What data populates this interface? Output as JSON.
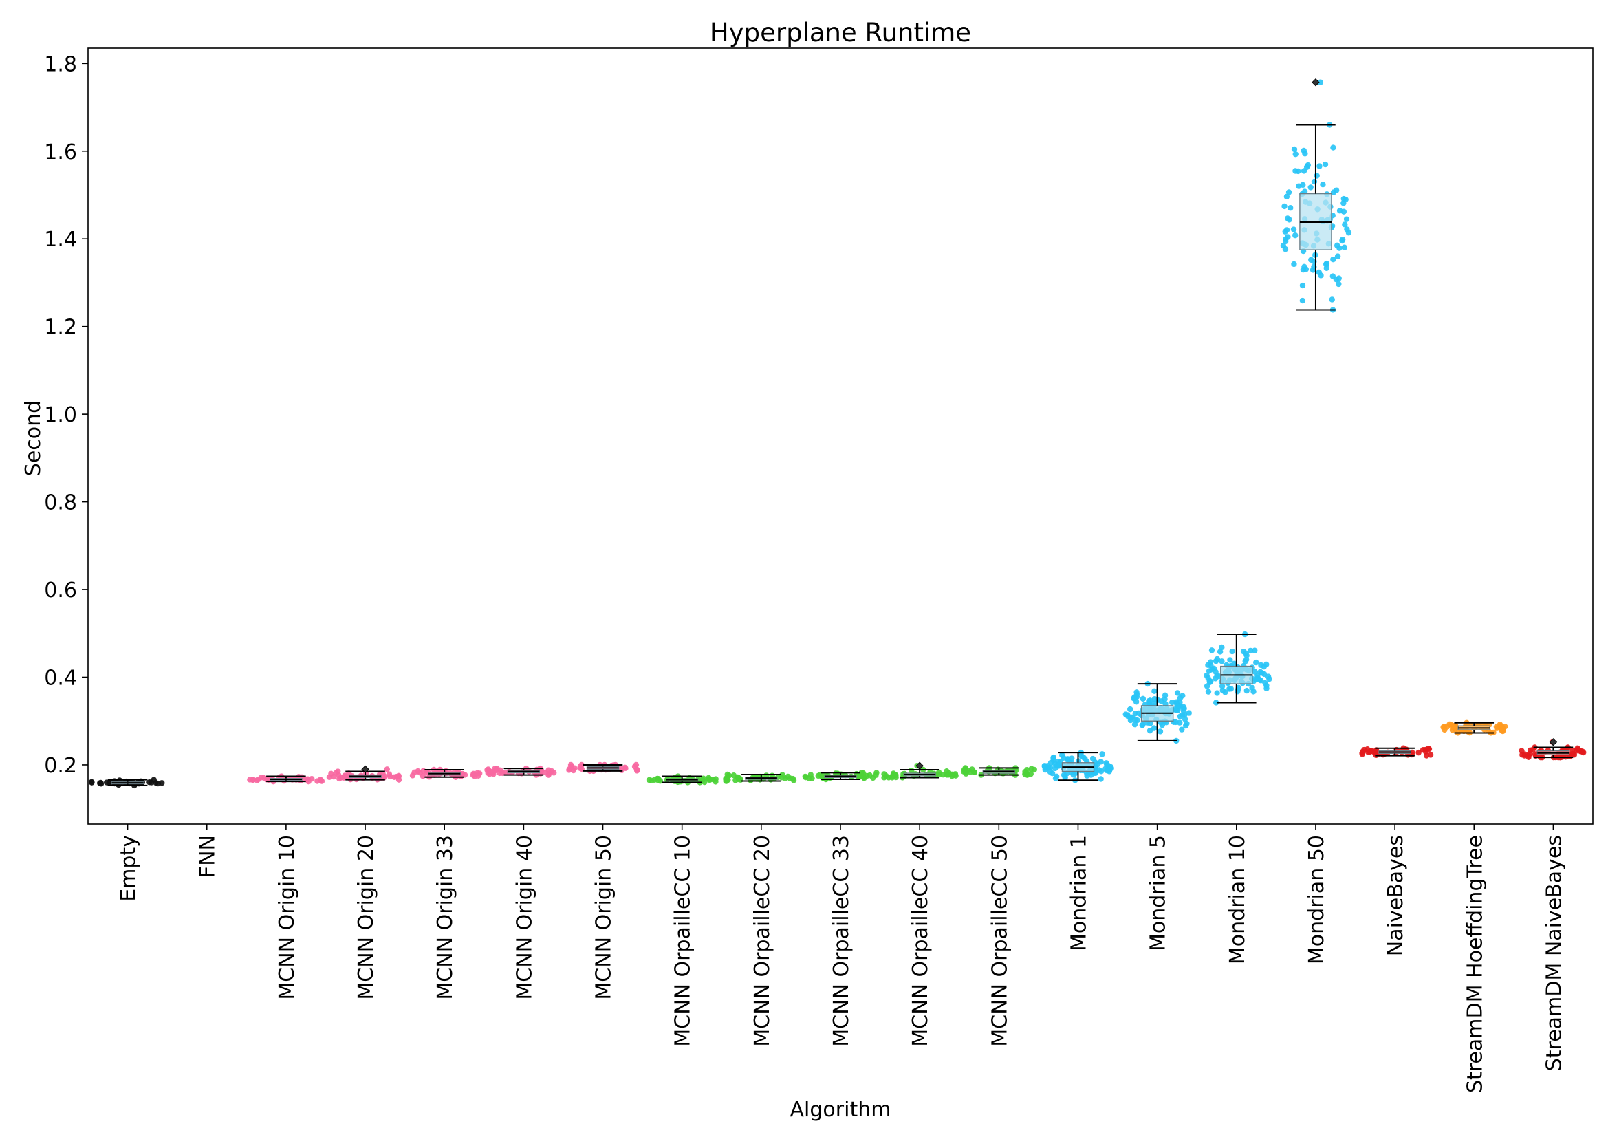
{
  "chart_data": {
    "type": "box",
    "title": "Hyperplane Runtime",
    "xlabel": "Algorithm",
    "ylabel": "Second",
    "ylim": [
      0.065,
      1.835
    ],
    "yticks": [
      0.2,
      0.4,
      0.6,
      0.8,
      1.0,
      1.2,
      1.4,
      1.6,
      1.8
    ],
    "grid": false,
    "legend": "none",
    "overlay": "swarm",
    "categories": [
      "Empty",
      "FNN",
      "MCNN Origin 10",
      "MCNN Origin 20",
      "MCNN Origin 33",
      "MCNN Origin 40",
      "MCNN Origin 50",
      "MCNN OrpailleCC 10",
      "MCNN OrpailleCC 20",
      "MCNN OrpailleCC 33",
      "MCNN OrpailleCC 40",
      "MCNN OrpailleCC 50",
      "Mondrian 1",
      "Mondrian 5",
      "Mondrian 10",
      "Mondrian 50",
      "NaiveBayes",
      "StreamDM HoeffdingTree",
      "StreamDM NaiveBayes"
    ],
    "series": [
      {
        "category": "Empty",
        "color": "#111111",
        "box_color": "#555555",
        "min": 0.153,
        "q1": 0.157,
        "median": 0.159,
        "q3": 0.161,
        "max": 0.166,
        "outliers": [],
        "n": 40
      },
      {
        "category": "FNN",
        "color": "#000000",
        "box_color": "#000000",
        "min": null,
        "q1": null,
        "median": null,
        "q3": null,
        "max": null,
        "outliers": [],
        "n": 0
      },
      {
        "category": "MCNN Origin 10",
        "color": "#f768a1",
        "box_color": "#f9a8c9",
        "min": 0.162,
        "q1": 0.165,
        "median": 0.167,
        "q3": 0.169,
        "max": 0.174,
        "outliers": [],
        "n": 40
      },
      {
        "category": "MCNN Origin 20",
        "color": "#f768a1",
        "box_color": "#f9a8c9",
        "min": 0.166,
        "q1": 0.171,
        "median": 0.174,
        "q3": 0.177,
        "max": 0.185,
        "outliers": [
          0.19
        ],
        "n": 40
      },
      {
        "category": "MCNN Origin 33",
        "color": "#f768a1",
        "box_color": "#f9a8c9",
        "min": 0.172,
        "q1": 0.177,
        "median": 0.18,
        "q3": 0.183,
        "max": 0.189,
        "outliers": [],
        "n": 40
      },
      {
        "category": "MCNN Origin 40",
        "color": "#f768a1",
        "box_color": "#f9a8c9",
        "min": 0.177,
        "q1": 0.182,
        "median": 0.185,
        "q3": 0.188,
        "max": 0.192,
        "outliers": [],
        "n": 40
      },
      {
        "category": "MCNN Origin 50",
        "color": "#f768a1",
        "box_color": "#f9a8c9",
        "min": 0.186,
        "q1": 0.19,
        "median": 0.193,
        "q3": 0.196,
        "max": 0.2,
        "outliers": [],
        "n": 40
      },
      {
        "category": "MCNN OrpailleCC 10",
        "color": "#4cd137",
        "box_color": "#9be38e",
        "min": 0.16,
        "q1": 0.163,
        "median": 0.166,
        "q3": 0.168,
        "max": 0.174,
        "outliers": [],
        "n": 40
      },
      {
        "category": "MCNN OrpailleCC 20",
        "color": "#4cd137",
        "box_color": "#9be38e",
        "min": 0.163,
        "q1": 0.167,
        "median": 0.17,
        "q3": 0.172,
        "max": 0.178,
        "outliers": [],
        "n": 40
      },
      {
        "category": "MCNN OrpailleCC 33",
        "color": "#4cd137",
        "box_color": "#9be38e",
        "min": 0.167,
        "q1": 0.171,
        "median": 0.174,
        "q3": 0.177,
        "max": 0.182,
        "outliers": [],
        "n": 40
      },
      {
        "category": "MCNN OrpailleCC 40",
        "color": "#4cd137",
        "box_color": "#9be38e",
        "min": 0.171,
        "q1": 0.175,
        "median": 0.178,
        "q3": 0.181,
        "max": 0.189,
        "outliers": [
          0.198
        ],
        "n": 40
      },
      {
        "category": "MCNN OrpailleCC 50",
        "color": "#4cd137",
        "box_color": "#9be38e",
        "min": 0.177,
        "q1": 0.181,
        "median": 0.185,
        "q3": 0.188,
        "max": 0.193,
        "outliers": [],
        "n": 40
      },
      {
        "category": "Mondrian 1",
        "color": "#29c4f6",
        "box_color": "#9fdcf0",
        "min": 0.165,
        "q1": 0.185,
        "median": 0.195,
        "q3": 0.205,
        "max": 0.228,
        "outliers": [],
        "n": 100
      },
      {
        "category": "Mondrian 5",
        "color": "#29c4f6",
        "box_color": "#9fdcf0",
        "min": 0.255,
        "q1": 0.3,
        "median": 0.318,
        "q3": 0.335,
        "max": 0.385,
        "outliers": [],
        "n": 100
      },
      {
        "category": "Mondrian 10",
        "color": "#29c4f6",
        "box_color": "#9fdcf0",
        "min": 0.342,
        "q1": 0.385,
        "median": 0.405,
        "q3": 0.425,
        "max": 0.498,
        "outliers": [],
        "n": 100
      },
      {
        "category": "Mondrian 50",
        "color": "#29c4f6",
        "box_color": "#b8e3f2",
        "min": 1.238,
        "q1": 1.375,
        "median": 1.438,
        "q3": 1.503,
        "max": 1.66,
        "outliers": [
          1.757
        ],
        "n": 100
      },
      {
        "category": "NaiveBayes",
        "color": "#e31a1c",
        "box_color": "#f08a8b",
        "min": 0.221,
        "q1": 0.226,
        "median": 0.229,
        "q3": 0.232,
        "max": 0.238,
        "outliers": [],
        "n": 40
      },
      {
        "category": "StreamDM HoeffdingTree",
        "color": "#ff9a1f",
        "box_color": "#ffc880",
        "min": 0.273,
        "q1": 0.28,
        "median": 0.284,
        "q3": 0.289,
        "max": 0.296,
        "outliers": [],
        "n": 60
      },
      {
        "category": "StreamDM NaiveBayes",
        "color": "#e31a1c",
        "box_color": "#f08a8b",
        "min": 0.217,
        "q1": 0.223,
        "median": 0.227,
        "q3": 0.232,
        "max": 0.24,
        "outliers": [
          0.252
        ],
        "n": 60
      }
    ]
  }
}
